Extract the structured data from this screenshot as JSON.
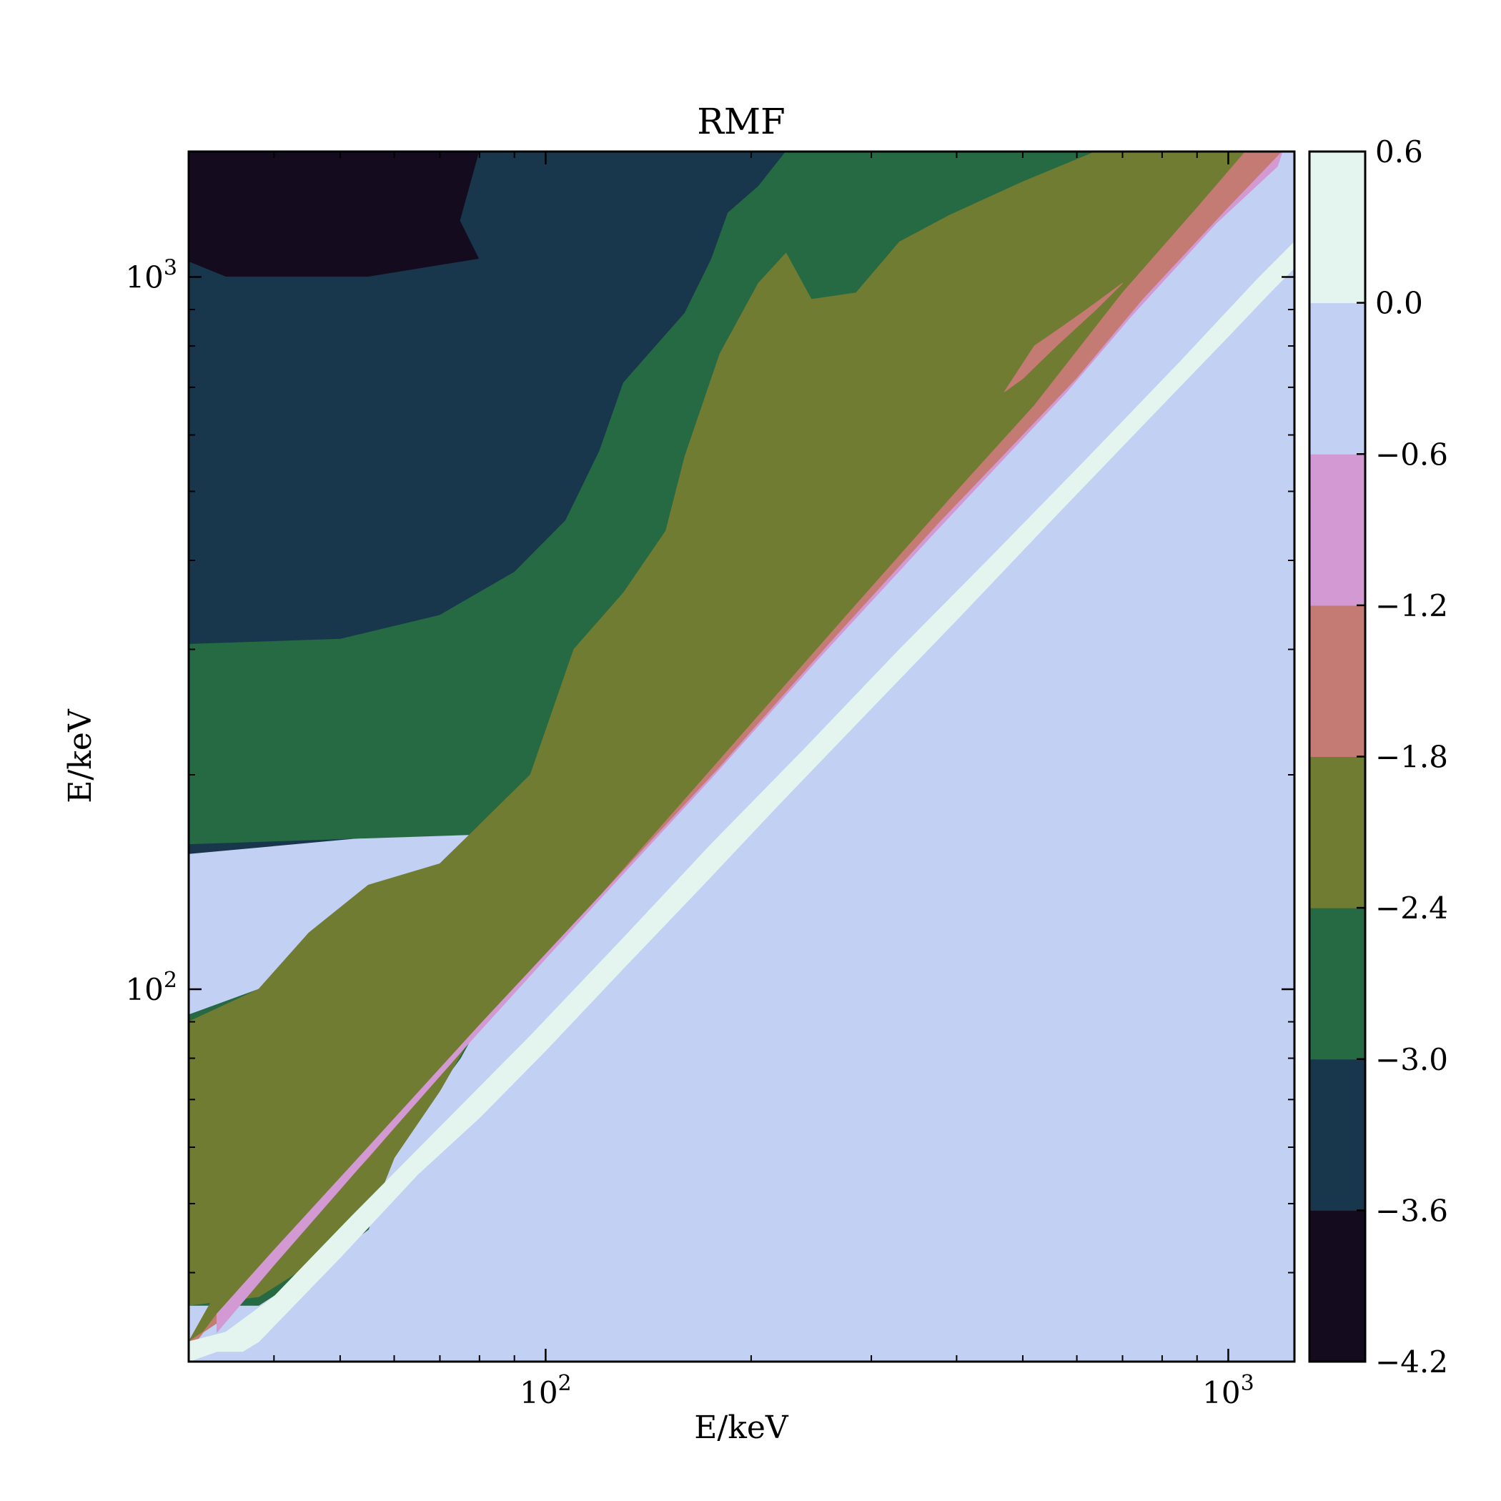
{
  "chart_data": {
    "type": "heatmap",
    "subtype": "filled-contour",
    "title": "RMF",
    "xlabel": "E/keV",
    "ylabel": "E/keV",
    "xscale": "log",
    "yscale": "log",
    "xlim": [
      30,
      1250
    ],
    "ylim": [
      30,
      1500
    ],
    "x_ticks": [
      {
        "value": 100,
        "base": "10",
        "exp": "2"
      },
      {
        "value": 1000,
        "base": "10",
        "exp": "3"
      }
    ],
    "y_ticks": [
      {
        "value": 100,
        "base": "10",
        "exp": "2"
      },
      {
        "value": 1000,
        "base": "10",
        "exp": "3"
      }
    ],
    "colorbar": {
      "levels": [
        -4.2,
        -3.6,
        -3.0,
        -2.4,
        -1.8,
        -1.2,
        -0.6,
        0.0,
        0.6
      ],
      "labels": [
        "−4.2",
        "−3.6",
        "−3.0",
        "−2.4",
        "−1.8",
        "−1.2",
        "−0.6",
        "0.0",
        "0.6"
      ],
      "colors": [
        "#150b1e",
        "#18364c",
        "#256a42",
        "#717c33",
        "#c47b73",
        "#d299d3",
        "#c1d0f3",
        "#e3f5ee"
      ]
    },
    "background_color": "#c1d0f3",
    "grid": false,
    "legend": "colorbar-right",
    "regions": [
      {
        "level_index": 0,
        "points": [
          [
            30,
            1050
          ],
          [
            34,
            1000
          ],
          [
            55,
            1000
          ],
          [
            80,
            1060
          ],
          [
            75,
            1200
          ],
          [
            80,
            1500
          ],
          [
            30,
            1500
          ]
        ]
      },
      {
        "level_index": 0,
        "points": [
          [
            30,
            82
          ],
          [
            45,
            95
          ],
          [
            60,
            105
          ],
          [
            62,
            95
          ],
          [
            55,
            82
          ],
          [
            48,
            70
          ],
          [
            42,
            55
          ],
          [
            38,
            42
          ],
          [
            32,
            40
          ],
          [
            30,
            38
          ]
        ]
      },
      {
        "level_index": 1,
        "points": [
          [
            30,
            1050
          ],
          [
            34,
            1000
          ],
          [
            55,
            1000
          ],
          [
            80,
            1060
          ],
          [
            75,
            1200
          ],
          [
            80,
            1500
          ],
          [
            225,
            1500
          ],
          [
            205,
            1330
          ],
          [
            185,
            1220
          ],
          [
            175,
            1050
          ],
          [
            160,
            880
          ],
          [
            130,
            700
          ],
          [
            120,
            560
          ],
          [
            107,
            450
          ],
          [
            90,
            380
          ],
          [
            70,
            330
          ],
          [
            50,
            305
          ],
          [
            30,
            300
          ]
        ]
      },
      {
        "level_index": 1,
        "points": [
          [
            30,
            285
          ],
          [
            60,
            280
          ],
          [
            90,
            220
          ],
          [
            75,
            168
          ],
          [
            30,
            155
          ]
        ]
      },
      {
        "level_index": 1,
        "points": [
          [
            30,
            92
          ],
          [
            50,
            110
          ],
          [
            75,
            128
          ],
          [
            85,
            125
          ],
          [
            75,
            100
          ],
          [
            68,
            78
          ],
          [
            60,
            60
          ],
          [
            55,
            46
          ],
          [
            45,
            40
          ],
          [
            38,
            36
          ],
          [
            30,
            36
          ]
        ]
      },
      {
        "level_index": 2,
        "points": [
          [
            30,
            305
          ],
          [
            50,
            310
          ],
          [
            70,
            335
          ],
          [
            90,
            385
          ],
          [
            107,
            455
          ],
          [
            120,
            570
          ],
          [
            130,
            710
          ],
          [
            160,
            890
          ],
          [
            175,
            1060
          ],
          [
            185,
            1230
          ],
          [
            205,
            1340
          ],
          [
            225,
            1500
          ],
          [
            640,
            1500
          ],
          [
            500,
            1360
          ],
          [
            390,
            1220
          ],
          [
            330,
            1120
          ],
          [
            285,
            950
          ],
          [
            245,
            930
          ],
          [
            225,
            1080
          ],
          [
            205,
            980
          ],
          [
            180,
            780
          ],
          [
            160,
            560
          ],
          [
            150,
            440
          ],
          [
            130,
            360
          ],
          [
            110,
            300
          ],
          [
            95,
            200
          ],
          [
            80,
            165
          ],
          [
            30,
            160
          ]
        ]
      },
      {
        "level_index": 2,
        "points": [
          [
            30,
            92
          ],
          [
            50,
            110
          ],
          [
            75,
            128
          ],
          [
            85,
            125
          ],
          [
            110,
            180
          ],
          [
            140,
            240
          ],
          [
            175,
            300
          ],
          [
            200,
            350
          ],
          [
            130,
            180
          ],
          [
            90,
            110
          ],
          [
            75,
            80
          ],
          [
            60,
            60
          ],
          [
            55,
            46
          ],
          [
            45,
            40
          ],
          [
            38,
            36
          ],
          [
            30,
            36
          ]
        ]
      },
      {
        "level_index": 3,
        "points": [
          [
            30,
            36
          ],
          [
            38,
            37
          ],
          [
            45,
            41
          ],
          [
            55,
            47
          ],
          [
            60,
            58
          ],
          [
            70,
            72
          ],
          [
            80,
            90
          ],
          [
            90,
            110
          ],
          [
            130,
            180
          ],
          [
            200,
            350
          ],
          [
            175,
            300
          ],
          [
            140,
            240
          ],
          [
            110,
            180
          ],
          [
            85,
            125
          ],
          [
            95,
            140
          ],
          [
            120,
            160
          ],
          [
            110,
            175
          ],
          [
            90,
            190
          ],
          [
            80,
            170
          ],
          [
            70,
            150
          ],
          [
            55,
            140
          ],
          [
            45,
            120
          ],
          [
            38,
            100
          ],
          [
            30,
            90
          ]
        ]
      },
      {
        "level_index": 3,
        "points": [
          [
            80,
            170
          ],
          [
            95,
            200
          ],
          [
            110,
            300
          ],
          [
            130,
            360
          ],
          [
            150,
            440
          ],
          [
            160,
            560
          ],
          [
            180,
            780
          ],
          [
            205,
            980
          ],
          [
            225,
            1080
          ],
          [
            245,
            930
          ],
          [
            285,
            950
          ],
          [
            330,
            1120
          ],
          [
            390,
            1220
          ],
          [
            500,
            1360
          ],
          [
            640,
            1500
          ],
          [
            1060,
            1500
          ],
          [
            900,
            1250
          ],
          [
            700,
            950
          ],
          [
            520,
            660
          ],
          [
            400,
            500
          ],
          [
            280,
            340
          ],
          [
            180,
            210
          ],
          [
            120,
            135
          ],
          [
            80,
            88
          ],
          [
            55,
            58
          ],
          [
            40,
            42
          ],
          [
            33,
            34
          ],
          [
            30,
            32
          ]
        ]
      },
      {
        "level_index": 4,
        "points": [
          [
            30,
            32
          ],
          [
            33,
            34
          ],
          [
            40,
            42
          ],
          [
            55,
            58
          ],
          [
            80,
            88
          ],
          [
            120,
            135
          ],
          [
            180,
            210
          ],
          [
            280,
            340
          ],
          [
            400,
            500
          ],
          [
            520,
            660
          ],
          [
            700,
            950
          ],
          [
            900,
            1250
          ],
          [
            1060,
            1500
          ],
          [
            1200,
            1500
          ],
          [
            1000,
            1250
          ],
          [
            750,
            930
          ],
          [
            600,
            720
          ],
          [
            480,
            575
          ],
          [
            380,
            455
          ],
          [
            260,
            305
          ],
          [
            180,
            205
          ],
          [
            120,
            135
          ],
          [
            80,
            89
          ],
          [
            55,
            60
          ],
          [
            40,
            43
          ],
          [
            33,
            35
          ],
          [
            30,
            31
          ]
        ]
      },
      {
        "level_index": 4,
        "points": [
          [
            470,
            690
          ],
          [
            520,
            800
          ],
          [
            560,
            840
          ],
          [
            600,
            880
          ],
          [
            640,
            920
          ],
          [
            700,
            980
          ],
          [
            640,
            900
          ],
          [
            560,
            800
          ],
          [
            500,
            720
          ]
        ]
      },
      {
        "level_index": 5,
        "points": [
          [
            33,
            35
          ],
          [
            40,
            43
          ],
          [
            55,
            60
          ],
          [
            80,
            89
          ],
          [
            120,
            135
          ],
          [
            180,
            205
          ],
          [
            260,
            305
          ],
          [
            380,
            455
          ],
          [
            480,
            575
          ],
          [
            600,
            720
          ],
          [
            750,
            930
          ],
          [
            1000,
            1250
          ],
          [
            1200,
            1500
          ],
          [
            1180,
            1430
          ],
          [
            960,
            1190
          ],
          [
            720,
            880
          ],
          [
            580,
            690
          ],
          [
            460,
            545
          ],
          [
            365,
            430
          ],
          [
            250,
            290
          ],
          [
            175,
            198
          ],
          [
            115,
            128
          ],
          [
            78,
            85
          ],
          [
            54,
            57
          ],
          [
            40,
            41
          ],
          [
            33,
            33
          ]
        ]
      },
      {
        "level_index": 7,
        "points": [
          [
            30,
            30
          ],
          [
            33,
            31
          ],
          [
            36,
            31
          ],
          [
            38,
            32
          ],
          [
            50,
            42
          ],
          [
            65,
            55
          ],
          [
            80,
            66
          ],
          [
            100,
            82
          ],
          [
            130,
            107
          ],
          [
            170,
            140
          ],
          [
            220,
            182
          ],
          [
            300,
            248
          ],
          [
            400,
            330
          ],
          [
            550,
            455
          ],
          [
            750,
            620
          ],
          [
            1000,
            825
          ],
          [
            1150,
            950
          ],
          [
            1250,
            1030
          ],
          [
            1250,
            1120
          ],
          [
            1100,
            990
          ],
          [
            850,
            760
          ],
          [
            620,
            555
          ],
          [
            450,
            405
          ],
          [
            330,
            300
          ],
          [
            240,
            218
          ],
          [
            175,
            160
          ],
          [
            130,
            118
          ],
          [
            95,
            86
          ],
          [
            70,
            64
          ],
          [
            52,
            48
          ],
          [
            40,
            37
          ],
          [
            34,
            33
          ],
          [
            30,
            32
          ]
        ]
      }
    ]
  }
}
